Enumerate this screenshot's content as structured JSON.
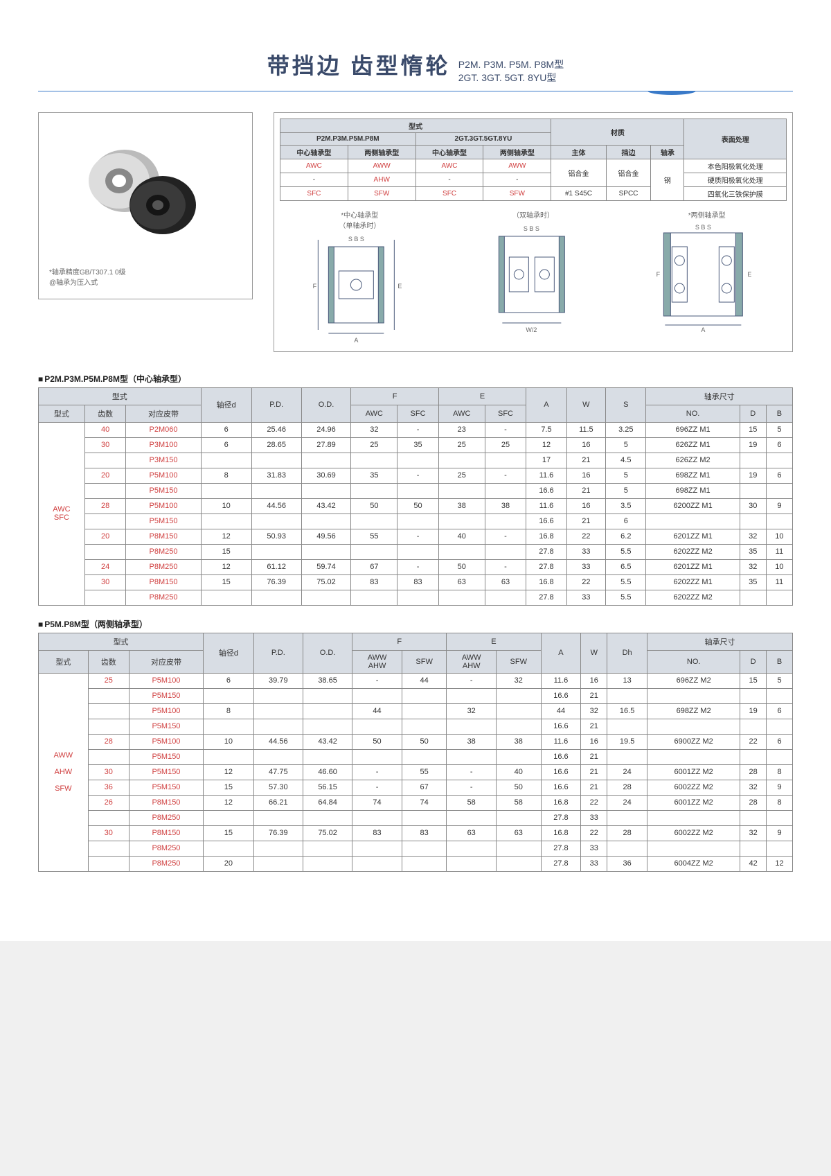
{
  "header": {
    "title_main": "带挡边 齿型惰轮",
    "title_sub_line1": "P2M. P3M. P5M. P8M型",
    "title_sub_line2": "2GT. 3GT. 5GT. 8YU型"
  },
  "photo_note_line1": "*轴承精度GB/T307.1 0级",
  "photo_note_line2": "@轴承为压入式",
  "spec": {
    "hdr_type": "型式",
    "hdr_material": "材质",
    "hdr_surface": "表面处理",
    "col1": "P2M.P3M.P5M.P8M",
    "col2": "2GT.3GT.5GT.8YU",
    "sub_center": "中心轴承型",
    "sub_both": "两侧轴承型",
    "mat_body": "主体",
    "mat_edge": "挡边",
    "mat_bearing": "轴承",
    "r1c1": "AWC",
    "r1c2": "AWW",
    "r1c3": "AWC",
    "r1c4": "AWW",
    "r1_body": "铝合金",
    "r1_edge": "铝合金",
    "r1_bearing": "钢",
    "r1_surf": "本色阳极氧化处理",
    "r2c1": "-",
    "r2c2": "AHW",
    "r2c3": "-",
    "r2c4": "-",
    "r2_surf": "硬质阳极氧化处理",
    "r3c1": "SFC",
    "r3c2": "SFW",
    "r3c3": "SFC",
    "r3c4": "SFW",
    "r3_body": "#1 S45C",
    "r3_edge": "SPCC",
    "r3_surf": "四氧化三铁保护膜"
  },
  "diag_label1": "*中心轴承型\n（单轴承时）",
  "diag_label2": "（双轴承时）",
  "diag_label3": "*两侧轴承型",
  "section1_title": "P2M.P3M.P5M.P8M型（中心轴承型）",
  "section2_title": "P5M.P8M型（两侧轴承型）",
  "t1": {
    "hdr_type": "型式",
    "hdr_model": "型式",
    "hdr_teeth": "齿数",
    "hdr_belt": "对应皮带",
    "hdr_d": "轴径d",
    "hdr_pd": "P.D.",
    "hdr_od": "O.D.",
    "hdr_F": "F",
    "hdr_E": "E",
    "hdr_A": "A",
    "hdr_W": "W",
    "hdr_S": "S",
    "hdr_bearing": "轴承尺寸",
    "hdr_no": "NO.",
    "hdr_D": "D",
    "hdr_B": "B",
    "hdr_awc": "AWC",
    "hdr_sfc": "SFC",
    "type_label": "AWC\nSFC",
    "rows": [
      {
        "teeth": "40",
        "belt": "P2M060",
        "d": "6",
        "pd": "25.46",
        "od": "24.96",
        "fa": "32",
        "fb": "-",
        "ea": "23",
        "eb": "-",
        "a": "7.5",
        "w": "11.5",
        "s": "3.25",
        "no": "696ZZ M1",
        "D": "15",
        "B": "5"
      },
      {
        "teeth": "30",
        "belt": "P3M100",
        "d": "6",
        "pd": "28.65",
        "od": "27.89",
        "fa": "25",
        "fb": "35",
        "ea": "25",
        "eb": "25",
        "a": "12",
        "w": "16",
        "s": "5",
        "no": "626ZZ M1",
        "D": "19",
        "B": "6"
      },
      {
        "teeth": "",
        "belt": "P3M150",
        "d": "",
        "pd": "",
        "od": "",
        "fa": "",
        "fb": "",
        "ea": "",
        "eb": "",
        "a": "17",
        "w": "21",
        "s": "4.5",
        "no": "626ZZ M2",
        "D": "",
        "B": ""
      },
      {
        "teeth": "20",
        "belt": "P5M100",
        "d": "8",
        "pd": "31.83",
        "od": "30.69",
        "fa": "35",
        "fb": "-",
        "ea": "25",
        "eb": "-",
        "a": "11.6",
        "w": "16",
        "s": "5",
        "no": "698ZZ M1",
        "D": "19",
        "B": "6"
      },
      {
        "teeth": "",
        "belt": "P5M150",
        "d": "",
        "pd": "",
        "od": "",
        "fa": "",
        "fb": "",
        "ea": "",
        "eb": "",
        "a": "16.6",
        "w": "21",
        "s": "5",
        "no": "698ZZ M1",
        "D": "",
        "B": ""
      },
      {
        "teeth": "28",
        "belt": "P5M100",
        "d": "10",
        "pd": "44.56",
        "od": "43.42",
        "fa": "50",
        "fb": "50",
        "ea": "38",
        "eb": "38",
        "a": "11.6",
        "w": "16",
        "s": "3.5",
        "no": "6200ZZ M1",
        "D": "30",
        "B": "9"
      },
      {
        "teeth": "",
        "belt": "P5M150",
        "d": "",
        "pd": "",
        "od": "",
        "fa": "",
        "fb": "",
        "ea": "",
        "eb": "",
        "a": "16.6",
        "w": "21",
        "s": "6",
        "no": "",
        "D": "",
        "B": ""
      },
      {
        "teeth": "20",
        "belt": "P8M150",
        "d": "12",
        "pd": "50.93",
        "od": "49.56",
        "fa": "55",
        "fb": "-",
        "ea": "40",
        "eb": "-",
        "a": "16.8",
        "w": "22",
        "s": "6.2",
        "no": "6201ZZ M1",
        "D": "32",
        "B": "10"
      },
      {
        "teeth": "",
        "belt": "P8M250",
        "d": "15",
        "pd": "",
        "od": "",
        "fa": "",
        "fb": "",
        "ea": "",
        "eb": "",
        "a": "27.8",
        "w": "33",
        "s": "5.5",
        "no": "6202ZZ M2",
        "D": "35",
        "B": "11"
      },
      {
        "teeth": "24",
        "belt": "P8M250",
        "d": "12",
        "pd": "61.12",
        "od": "59.74",
        "fa": "67",
        "fb": "-",
        "ea": "50",
        "eb": "-",
        "a": "27.8",
        "w": "33",
        "s": "6.5",
        "no": "6201ZZ M1",
        "D": "32",
        "B": "10"
      },
      {
        "teeth": "30",
        "belt": "P8M150",
        "d": "15",
        "pd": "76.39",
        "od": "75.02",
        "fa": "83",
        "fb": "83",
        "ea": "63",
        "eb": "63",
        "a": "16.8",
        "w": "22",
        "s": "5.5",
        "no": "6202ZZ M1",
        "D": "35",
        "B": "11"
      },
      {
        "teeth": "",
        "belt": "P8M250",
        "d": "",
        "pd": "",
        "od": "",
        "fa": "",
        "fb": "",
        "ea": "",
        "eb": "",
        "a": "27.8",
        "w": "33",
        "s": "5.5",
        "no": "6202ZZ M2",
        "D": "",
        "B": ""
      }
    ]
  },
  "t2": {
    "hdr_type": "型式",
    "hdr_model": "型式",
    "hdr_teeth": "齿数",
    "hdr_belt": "对应皮带",
    "hdr_d": "轴径d",
    "hdr_pd": "P.D.",
    "hdr_od": "O.D.",
    "hdr_F": "F",
    "hdr_E": "E",
    "hdr_A": "A",
    "hdr_W": "W",
    "hdr_Dh": "Dh",
    "hdr_bearing": "轴承尺寸",
    "hdr_no": "NO.",
    "hdr_D": "D",
    "hdr_B": "B",
    "hdr_aww": "AWW\nAHW",
    "hdr_sfw": "SFW",
    "type_label": "AWW\n\nAHW\n\nSFW",
    "rows": [
      {
        "teeth": "25",
        "belt": "P5M100",
        "d": "6",
        "pd": "39.79",
        "od": "38.65",
        "fa": "-",
        "fb": "44",
        "ea": "-",
        "eb": "32",
        "a": "11.6",
        "w": "16",
        "dh": "13",
        "no": "696ZZ M2",
        "D": "15",
        "B": "5"
      },
      {
        "teeth": "",
        "belt": "P5M150",
        "d": "",
        "pd": "",
        "od": "",
        "fa": "",
        "fb": "",
        "ea": "",
        "eb": "",
        "a": "16.6",
        "w": "21",
        "dh": "",
        "no": "",
        "D": "",
        "B": ""
      },
      {
        "teeth": "",
        "belt": "P5M100",
        "d": "8",
        "pd": "",
        "od": "",
        "fa": "44",
        "fb": "",
        "ea": "32",
        "eb": "",
        "a": "44",
        "w": "32",
        "dh": "16.5",
        "no": "698ZZ M2",
        "D": "19",
        "B": "6"
      },
      {
        "teeth": "",
        "belt": "P5M150",
        "d": "",
        "pd": "",
        "od": "",
        "fa": "",
        "fb": "",
        "ea": "",
        "eb": "",
        "a": "16.6",
        "w": "21",
        "dh": "",
        "no": "",
        "D": "",
        "B": ""
      },
      {
        "teeth": "28",
        "belt": "P5M100",
        "d": "10",
        "pd": "44.56",
        "od": "43.42",
        "fa": "50",
        "fb": "50",
        "ea": "38",
        "eb": "38",
        "a": "11.6",
        "w": "16",
        "dh": "19.5",
        "no": "6900ZZ M2",
        "D": "22",
        "B": "6"
      },
      {
        "teeth": "",
        "belt": "P5M150",
        "d": "",
        "pd": "",
        "od": "",
        "fa": "",
        "fb": "",
        "ea": "",
        "eb": "",
        "a": "16.6",
        "w": "21",
        "dh": "",
        "no": "",
        "D": "",
        "B": ""
      },
      {
        "teeth": "30",
        "belt": "P5M150",
        "d": "12",
        "pd": "47.75",
        "od": "46.60",
        "fa": "-",
        "fb": "55",
        "ea": "-",
        "eb": "40",
        "a": "16.6",
        "w": "21",
        "dh": "24",
        "no": "6001ZZ M2",
        "D": "28",
        "B": "8"
      },
      {
        "teeth": "36",
        "belt": "P5M150",
        "d": "15",
        "pd": "57.30",
        "od": "56.15",
        "fa": "-",
        "fb": "67",
        "ea": "-",
        "eb": "50",
        "a": "16.6",
        "w": "21",
        "dh": "28",
        "no": "6002ZZ M2",
        "D": "32",
        "B": "9"
      },
      {
        "teeth": "26",
        "belt": "P8M150",
        "d": "12",
        "pd": "66.21",
        "od": "64.84",
        "fa": "74",
        "fb": "74",
        "ea": "58",
        "eb": "58",
        "a": "16.8",
        "w": "22",
        "dh": "24",
        "no": "6001ZZ M2",
        "D": "28",
        "B": "8"
      },
      {
        "teeth": "",
        "belt": "P8M250",
        "d": "",
        "pd": "",
        "od": "",
        "fa": "",
        "fb": "",
        "ea": "",
        "eb": "",
        "a": "27.8",
        "w": "33",
        "dh": "",
        "no": "",
        "D": "",
        "B": ""
      },
      {
        "teeth": "30",
        "belt": "P8M150",
        "d": "15",
        "pd": "76.39",
        "od": "75.02",
        "fa": "83",
        "fb": "83",
        "ea": "63",
        "eb": "63",
        "a": "16.8",
        "w": "22",
        "dh": "28",
        "no": "6002ZZ M2",
        "D": "32",
        "B": "9"
      },
      {
        "teeth": "",
        "belt": "P8M250",
        "d": "",
        "pd": "",
        "od": "",
        "fa": "",
        "fb": "",
        "ea": "",
        "eb": "",
        "a": "27.8",
        "w": "33",
        "dh": "",
        "no": "",
        "D": "",
        "B": ""
      },
      {
        "teeth": "",
        "belt": "P8M250",
        "d": "20",
        "pd": "",
        "od": "",
        "fa": "",
        "fb": "",
        "ea": "",
        "eb": "",
        "a": "27.8",
        "w": "33",
        "dh": "36",
        "no": "6004ZZ M2",
        "D": "42",
        "B": "12"
      }
    ]
  }
}
